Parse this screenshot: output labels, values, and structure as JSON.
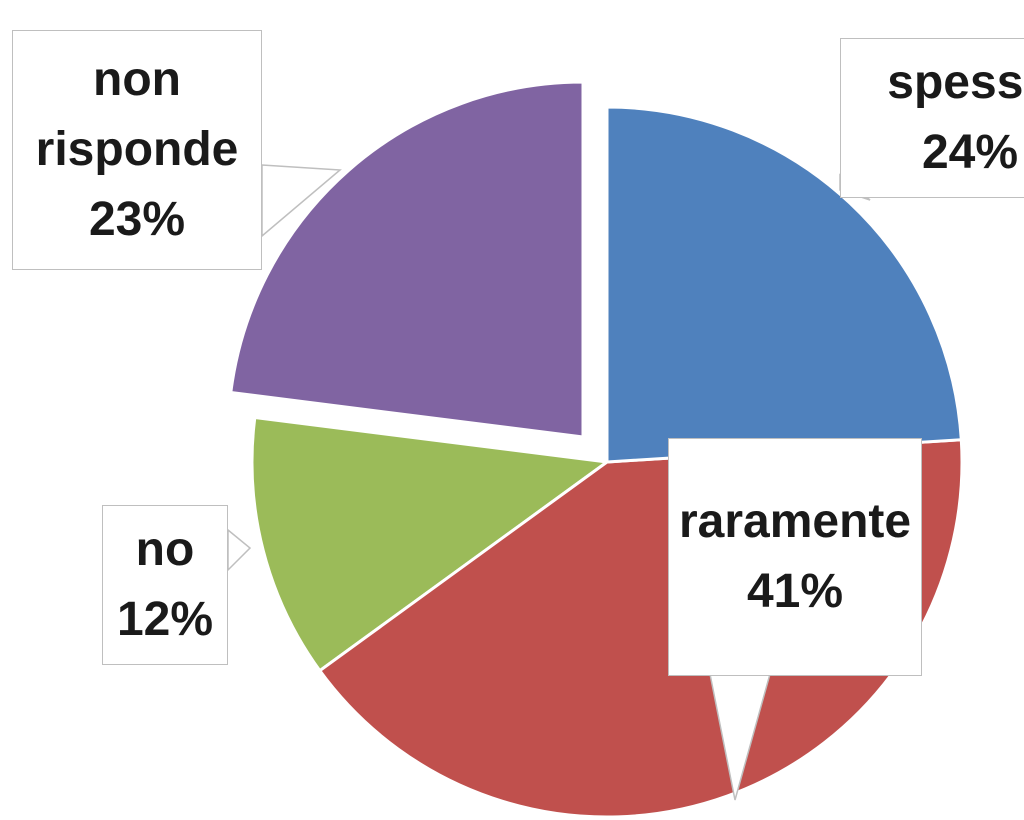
{
  "chart_data": {
    "type": "pie",
    "categories": [
      "spesso",
      "raramente",
      "no",
      "non risponde"
    ],
    "values": [
      24,
      41,
      12,
      23
    ],
    "value_labels": [
      "24%",
      "41%",
      "12%",
      "23%"
    ],
    "colors": [
      "#4f81bd",
      "#c0504d",
      "#9bbb59",
      "#8064a2"
    ]
  }
}
